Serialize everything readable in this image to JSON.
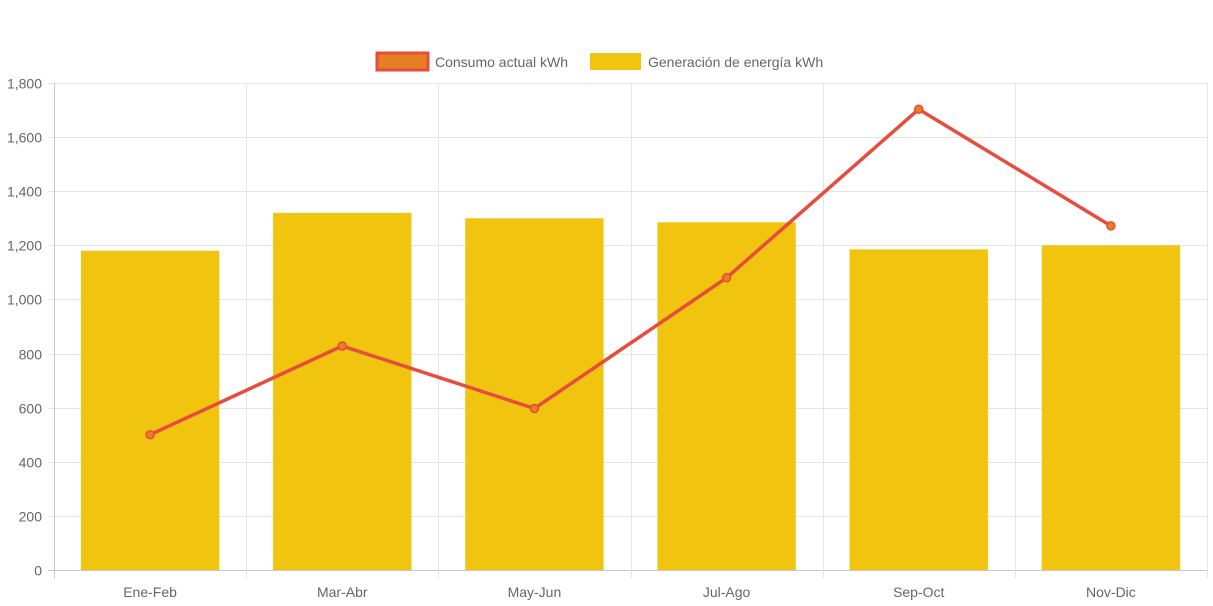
{
  "colors": {
    "line": "#e74c3c",
    "line_point_fill": "#e67e22",
    "bar": "#f1c40f",
    "grid": "#e5e5e5",
    "axis_text": "#666666"
  },
  "chart_data": {
    "type": "bar",
    "categories": [
      "Ene-Feb",
      "Mar-Abr",
      "May-Jun",
      "Jul-Ago",
      "Sep-Oct",
      "Nov-Dic"
    ],
    "series": [
      {
        "name": "Consumo actual kWh",
        "type": "line",
        "values": [
          500,
          828,
          597,
          1080,
          1703,
          1272
        ]
      },
      {
        "name": "Generación de energía kWh",
        "type": "bar",
        "values": [
          1180,
          1320,
          1300,
          1285,
          1185,
          1200
        ]
      }
    ],
    "ylim": [
      0,
      1800
    ],
    "yticks": [
      "0",
      "200",
      "400",
      "600",
      "800",
      "1,000",
      "1,200",
      "1,400",
      "1,600",
      "1,800"
    ],
    "grid": true,
    "legend": "top-center"
  }
}
